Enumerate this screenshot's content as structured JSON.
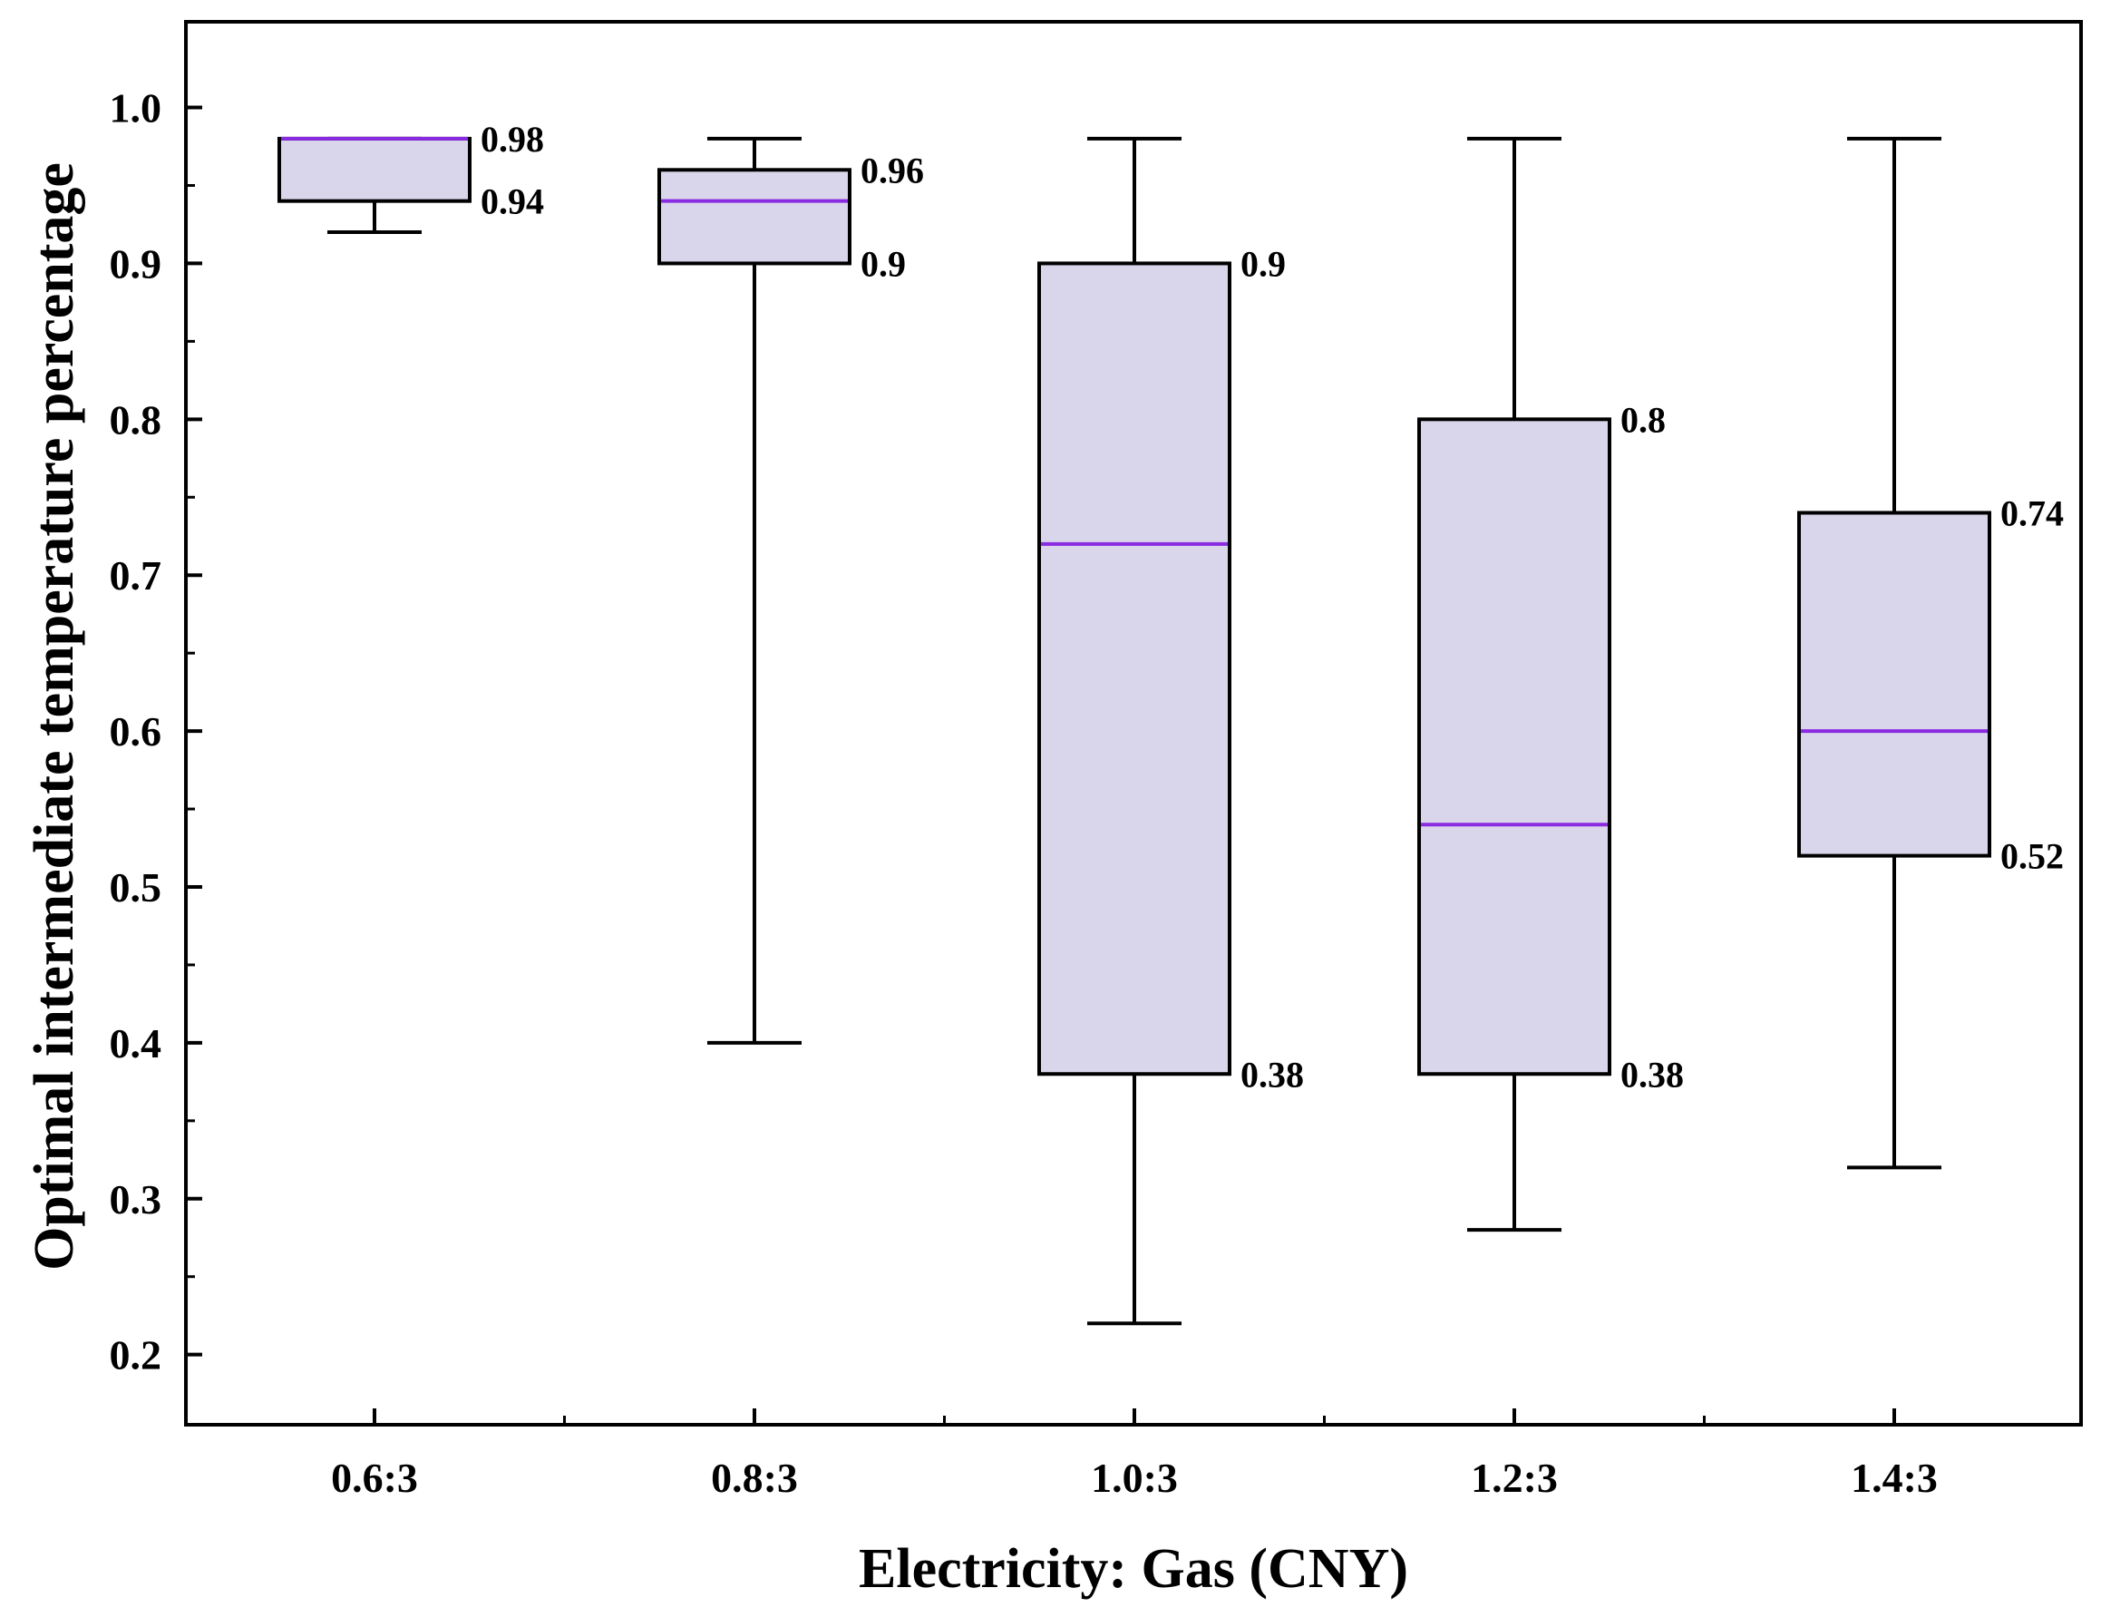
{
  "chart_data": {
    "type": "box",
    "title": "",
    "xlabel": "Electricity: Gas (CNY)",
    "ylabel": "Optimal intermediate temperature percentage",
    "ylim": [
      0.155,
      1.055
    ],
    "yticks": [
      "0.2",
      "0.3",
      "0.4",
      "0.5",
      "0.6",
      "0.7",
      "0.8",
      "0.9",
      "1.0"
    ],
    "ytick_values": [
      0.2,
      0.3,
      0.4,
      0.5,
      0.6,
      0.7,
      0.8,
      0.9,
      1.0
    ],
    "categories": [
      "0.6:3",
      "0.8:3",
      "1.0:3",
      "1.2:3",
      "1.4:3"
    ],
    "boxes": [
      {
        "category": "0.6:3",
        "whisker_low": 0.92,
        "q1": 0.94,
        "median": 0.98,
        "q3": 0.98,
        "whisker_high": 0.98,
        "labels": [
          {
            "text": "0.98",
            "value": 0.98
          },
          {
            "text": "0.94",
            "value": 0.94
          }
        ]
      },
      {
        "category": "0.8:3",
        "whisker_low": 0.4,
        "q1": 0.9,
        "median": 0.94,
        "q3": 0.96,
        "whisker_high": 0.98,
        "labels": [
          {
            "text": "0.96",
            "value": 0.96
          },
          {
            "text": "0.9",
            "value": 0.9
          }
        ]
      },
      {
        "category": "1.0:3",
        "whisker_low": 0.22,
        "q1": 0.38,
        "median": 0.72,
        "q3": 0.9,
        "whisker_high": 0.98,
        "labels": [
          {
            "text": "0.9",
            "value": 0.9
          },
          {
            "text": "0.38",
            "value": 0.38
          }
        ]
      },
      {
        "category": "1.2:3",
        "whisker_low": 0.28,
        "q1": 0.38,
        "median": 0.54,
        "q3": 0.8,
        "whisker_high": 0.98,
        "labels": [
          {
            "text": "0.8",
            "value": 0.8
          },
          {
            "text": "0.38",
            "value": 0.38
          }
        ]
      },
      {
        "category": "1.4:3",
        "whisker_low": 0.32,
        "q1": 0.52,
        "median": 0.6,
        "q3": 0.74,
        "whisker_high": 0.98,
        "labels": [
          {
            "text": "0.74",
            "value": 0.74
          },
          {
            "text": "0.52",
            "value": 0.52
          }
        ]
      }
    ],
    "colors": {
      "box_fill": "#d9d5ea",
      "median_line": "#8a2be2",
      "stroke": "#000000"
    }
  }
}
